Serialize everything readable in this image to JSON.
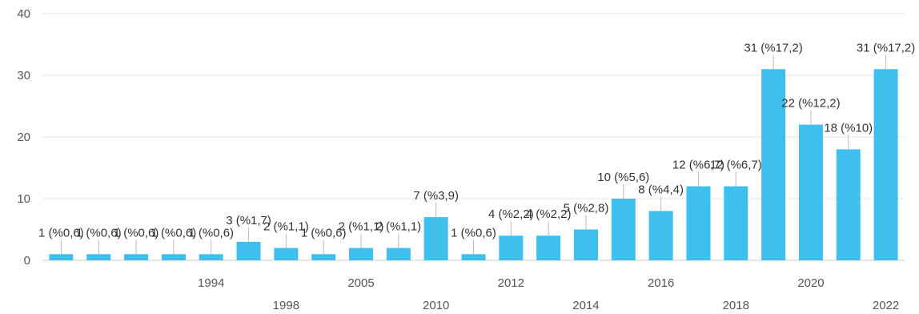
{
  "chart_data": {
    "type": "bar",
    "title": "",
    "xlabel": "",
    "ylabel": "",
    "ylim": [
      0,
      40
    ],
    "yticks": [
      "0",
      "10",
      "20",
      "30",
      "40"
    ],
    "grid": "horizontal",
    "legend": "none",
    "bar_color": "#3fc0ec",
    "axis_label_color": "#555555",
    "grid_color": "#e6e6e6",
    "categories": [
      "",
      "",
      "",
      "",
      "1994",
      "",
      "1998",
      "",
      "2005",
      "",
      "2010",
      "",
      "2012",
      "",
      "2014",
      "",
      "2016",
      "",
      "2018",
      "",
      "2020",
      "",
      "2022"
    ],
    "values": [
      1,
      1,
      1,
      1,
      1,
      3,
      2,
      1,
      2,
      2,
      7,
      1,
      4,
      4,
      5,
      10,
      8,
      12,
      12,
      31,
      22,
      18,
      31
    ],
    "data_labels": [
      "1 (%0,6)",
      "1 (%0,6)",
      "1 (%0,6)",
      "1 (%0,6)",
      "1 (%0,6)",
      "3 (%1,7)",
      "2 (%1,1)",
      "1 (%0,6)",
      "2 (%1,1)",
      "2 (%1,1)",
      "7 (%3,9)",
      "1 (%0,6)",
      "4 (%2,2)",
      "4 (%2,2)",
      "5 (%2,8)",
      "10 (%5,6)",
      "8 (%4,4)",
      "12 (%6,7)",
      "12 (%6,7)",
      "31 (%17,2)",
      "22 (%12,2)",
      "18 (%10)",
      "31 (%17,2)"
    ]
  }
}
